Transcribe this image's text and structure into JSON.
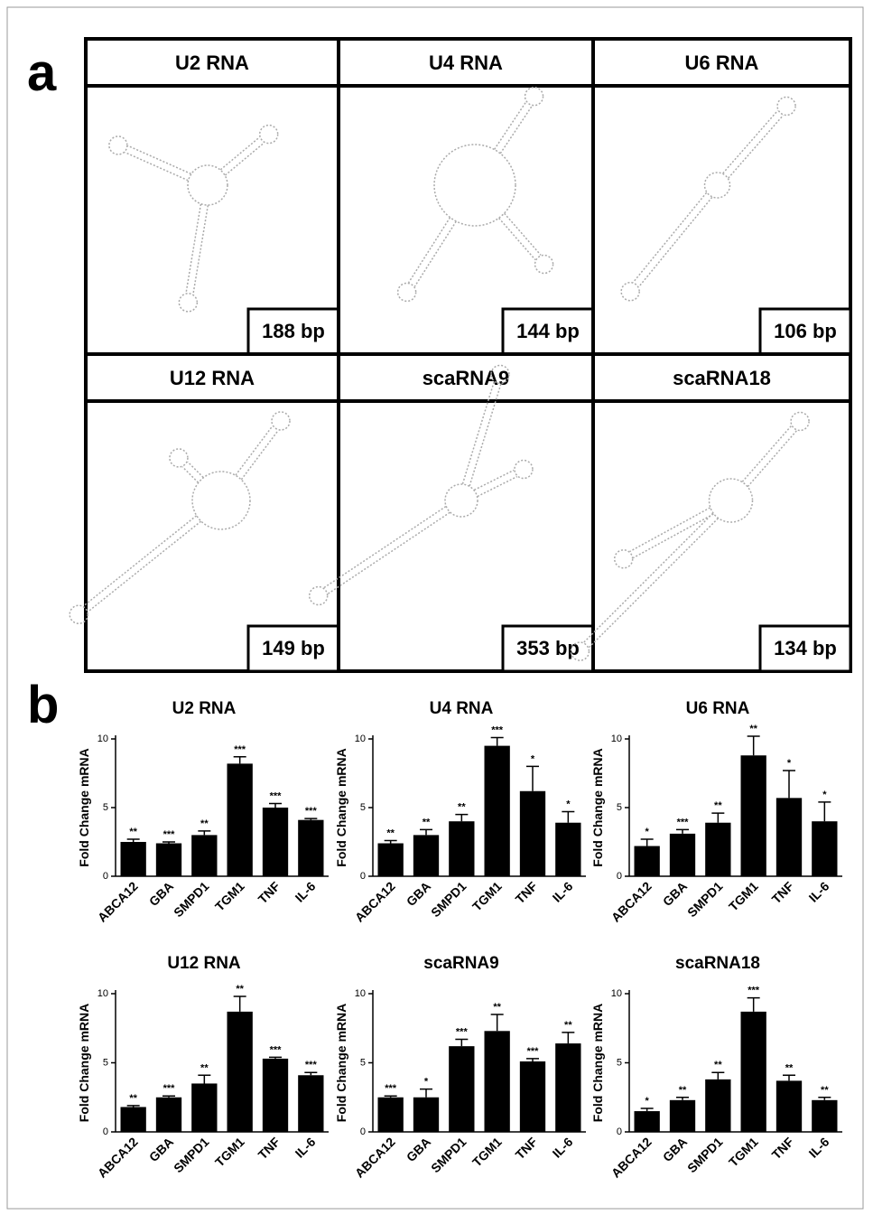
{
  "panel_labels": [
    "a",
    "b"
  ],
  "structures": [
    {
      "name": "U2 RNA",
      "length": "188 bp"
    },
    {
      "name": "U4 RNA",
      "length": "144 bp"
    },
    {
      "name": "U6 RNA",
      "length": "106 bp"
    },
    {
      "name": "U12 RNA",
      "length": "149 bp"
    },
    {
      "name": "scaRNA9",
      "length": "353 bp"
    },
    {
      "name": "scaRNA18",
      "length": "134 bp"
    }
  ],
  "chart_data": [
    {
      "type": "bar",
      "title": "U2 RNA",
      "y_label": "Fold Change mRNA",
      "categories": [
        "ABCA12",
        "GBA",
        "SMPD1",
        "TGM1",
        "TNF",
        "IL-6"
      ],
      "values": [
        2.5,
        2.4,
        3.0,
        8.2,
        5.0,
        4.1
      ],
      "errors": [
        0.2,
        0.1,
        0.3,
        0.5,
        0.3,
        0.1
      ],
      "significance": [
        "**",
        "***",
        "**",
        "***",
        "***",
        "***"
      ],
      "color": "#000000",
      "ylim": [
        0,
        10
      ],
      "yticks": [
        0,
        5,
        10
      ]
    },
    {
      "type": "bar",
      "title": "U4 RNA",
      "y_label": "Fold Change mRNA",
      "categories": [
        "ABCA12",
        "GBA",
        "SMPD1",
        "TGM1",
        "TNF",
        "IL-6"
      ],
      "values": [
        2.4,
        3.0,
        4.0,
        9.5,
        6.2,
        3.9
      ],
      "errors": [
        0.2,
        0.4,
        0.5,
        0.6,
        1.8,
        0.8
      ],
      "significance": [
        "**",
        "**",
        "**",
        "***",
        "*",
        "*"
      ],
      "color": "#000000",
      "ylim": [
        0,
        10
      ],
      "yticks": [
        0,
        5,
        10
      ]
    },
    {
      "type": "bar",
      "title": "U6 RNA",
      "y_label": "Fold Change mRNA",
      "categories": [
        "ABCA12",
        "GBA",
        "SMPD1",
        "TGM1",
        "TNF",
        "IL-6"
      ],
      "values": [
        2.2,
        3.1,
        3.9,
        8.8,
        5.7,
        4.0
      ],
      "errors": [
        0.5,
        0.3,
        0.7,
        1.4,
        2.0,
        1.4
      ],
      "significance": [
        "*",
        "***",
        "**",
        "**",
        "*",
        "*"
      ],
      "color": "#000000",
      "ylim": [
        0,
        10
      ],
      "yticks": [
        0,
        5,
        10
      ]
    },
    {
      "type": "bar",
      "title": "U12 RNA",
      "y_label": "Fold Change mRNA",
      "categories": [
        "ABCA12",
        "GBA",
        "SMPD1",
        "TGM1",
        "TNF",
        "IL-6"
      ],
      "values": [
        1.8,
        2.5,
        3.5,
        8.7,
        5.3,
        4.1
      ],
      "errors": [
        0.1,
        0.1,
        0.6,
        1.1,
        0.1,
        0.2
      ],
      "significance": [
        "**",
        "***",
        "**",
        "**",
        "***",
        "***"
      ],
      "color": "#000000",
      "ylim": [
        0,
        10
      ],
      "yticks": [
        0,
        5,
        10
      ]
    },
    {
      "type": "bar",
      "title": "scaRNA9",
      "y_label": "Fold Change mRNA",
      "categories": [
        "ABCA12",
        "GBA",
        "SMPD1",
        "TGM1",
        "TNF",
        "IL-6"
      ],
      "values": [
        2.5,
        2.5,
        6.2,
        7.3,
        5.1,
        6.4
      ],
      "errors": [
        0.1,
        0.6,
        0.5,
        1.2,
        0.2,
        0.8
      ],
      "significance": [
        "***",
        "*",
        "***",
        "**",
        "***",
        "**"
      ],
      "color": "#000000",
      "ylim": [
        0,
        10
      ],
      "yticks": [
        0,
        5,
        10
      ]
    },
    {
      "type": "bar",
      "title": "scaRNA18",
      "y_label": "Fold Change mRNA",
      "categories": [
        "ABCA12",
        "GBA",
        "SMPD1",
        "TGM1",
        "TNF",
        "IL-6"
      ],
      "values": [
        1.5,
        2.3,
        3.8,
        8.7,
        3.7,
        2.3
      ],
      "errors": [
        0.2,
        0.2,
        0.5,
        1.0,
        0.4,
        0.2
      ],
      "significance": [
        "*",
        "**",
        "**",
        "***",
        "**",
        "**"
      ],
      "color": "#000000",
      "ylim": [
        0,
        10
      ],
      "yticks": [
        0,
        5,
        10
      ]
    }
  ]
}
